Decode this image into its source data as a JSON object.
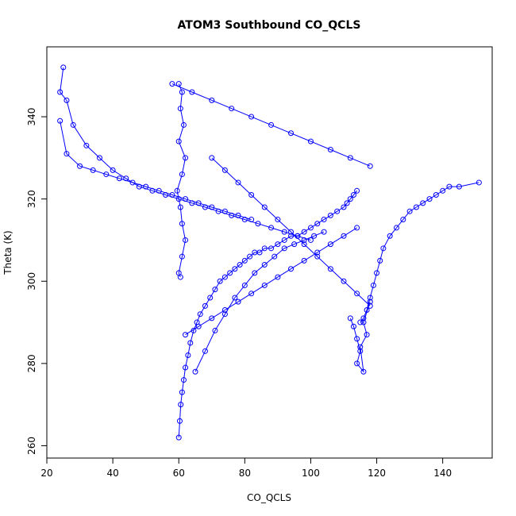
{
  "chart_data": {
    "type": "line",
    "title": "ATOM3 Southbound CO_QCLS",
    "xlabel": "CO_QCLS",
    "ylabel": "Theta (K)",
    "xlim": [
      20,
      155
    ],
    "ylim": [
      257,
      357
    ],
    "x_ticks": [
      20,
      40,
      60,
      80,
      100,
      120,
      140
    ],
    "y_ticks": [
      260,
      280,
      300,
      320,
      340
    ],
    "x_tick_labels": [
      "20",
      "40",
      "60",
      "80",
      "100",
      "120",
      "140"
    ],
    "y_tick_labels": [
      "260",
      "280",
      "300",
      "320",
      "340"
    ],
    "grid": false,
    "legend": "none",
    "marker": "open-circle",
    "color": "#0000ff",
    "series": [
      {
        "x": [
          60,
          60.3,
          60.6,
          61,
          61.5,
          62,
          62.8,
          63.5,
          64.5,
          65.5,
          66.5,
          68,
          69.5,
          71,
          72.5,
          74,
          75.5,
          77,
          78.5,
          80,
          81.5,
          83,
          84.5,
          86,
          88,
          90,
          92,
          94,
          96,
          98,
          100,
          102,
          104,
          106,
          108,
          110,
          111,
          112,
          113,
          114
        ],
        "y": [
          262,
          266,
          270,
          273,
          276,
          279,
          282,
          285,
          288,
          290,
          292,
          294,
          296,
          298,
          300,
          301,
          302,
          303,
          304,
          305,
          306,
          307,
          307,
          308,
          308,
          309,
          310,
          311,
          311,
          312,
          313,
          314,
          315,
          316,
          317,
          318,
          319,
          320,
          321,
          322
        ]
      },
      {
        "x": [
          115,
          116,
          117,
          118,
          119,
          120,
          121,
          122,
          124,
          126,
          128,
          130,
          132,
          134,
          136,
          138,
          140,
          142,
          145,
          151
        ],
        "y": [
          290,
          291,
          293,
          296,
          299,
          302,
          305,
          308,
          311,
          313,
          315,
          317,
          318,
          319,
          320,
          321,
          322,
          323,
          323,
          324
        ]
      },
      {
        "x": [
          25,
          24,
          26,
          28,
          32,
          36,
          40,
          44,
          48,
          52,
          56,
          60,
          64,
          68,
          72,
          76,
          80,
          84,
          88,
          92,
          96,
          100
        ],
        "y": [
          352,
          346,
          344,
          338,
          333,
          330,
          327,
          325,
          323,
          322,
          321,
          320,
          319,
          318,
          317,
          316,
          315,
          314,
          313,
          312,
          311,
          310
        ]
      },
      {
        "x": [
          60,
          61,
          60.5,
          61.5,
          60,
          62,
          61,
          59.5,
          60.5,
          61,
          62,
          61,
          60,
          60.5
        ],
        "y": [
          348,
          346,
          342,
          338,
          334,
          330,
          326,
          322,
          318,
          314,
          310,
          306,
          302,
          301
        ]
      },
      {
        "x": [
          24,
          26,
          30,
          34,
          38,
          42,
          46,
          50,
          54,
          58,
          62,
          66,
          70,
          74,
          78,
          82
        ],
        "y": [
          339,
          331,
          328,
          327,
          326,
          325,
          324,
          323,
          322,
          321,
          320,
          319,
          318,
          317,
          316,
          315
        ]
      },
      {
        "x": [
          58,
          64,
          70,
          76,
          82,
          88,
          94,
          100,
          106,
          112,
          118
        ],
        "y": [
          348,
          346,
          344,
          342,
          340,
          338,
          336,
          334,
          332,
          330,
          328
        ]
      },
      {
        "x": [
          65,
          68,
          71,
          74,
          77,
          80,
          83,
          86,
          89,
          92,
          95,
          98,
          101,
          104
        ],
        "y": [
          278,
          283,
          288,
          292,
          296,
          299,
          302,
          304,
          306,
          308,
          309,
          310,
          311,
          312
        ]
      },
      {
        "x": [
          70,
          74,
          78,
          82,
          86,
          90,
          94,
          98,
          102,
          106,
          110,
          114,
          118
        ],
        "y": [
          330,
          327,
          324,
          321,
          318,
          315,
          312,
          309,
          306,
          303,
          300,
          297,
          294
        ]
      },
      {
        "x": [
          62,
          66,
          70,
          74,
          78,
          82,
          86,
          90,
          94,
          98,
          102,
          106,
          110,
          114
        ],
        "y": [
          287,
          289,
          291,
          293,
          295,
          297,
          299,
          301,
          303,
          305,
          307,
          309,
          311,
          313
        ]
      },
      {
        "x": [
          112,
          113,
          114,
          115,
          114,
          116,
          115,
          117,
          116,
          118
        ],
        "y": [
          291,
          289,
          286,
          283,
          280,
          278,
          284,
          287,
          290,
          295
        ]
      }
    ]
  }
}
